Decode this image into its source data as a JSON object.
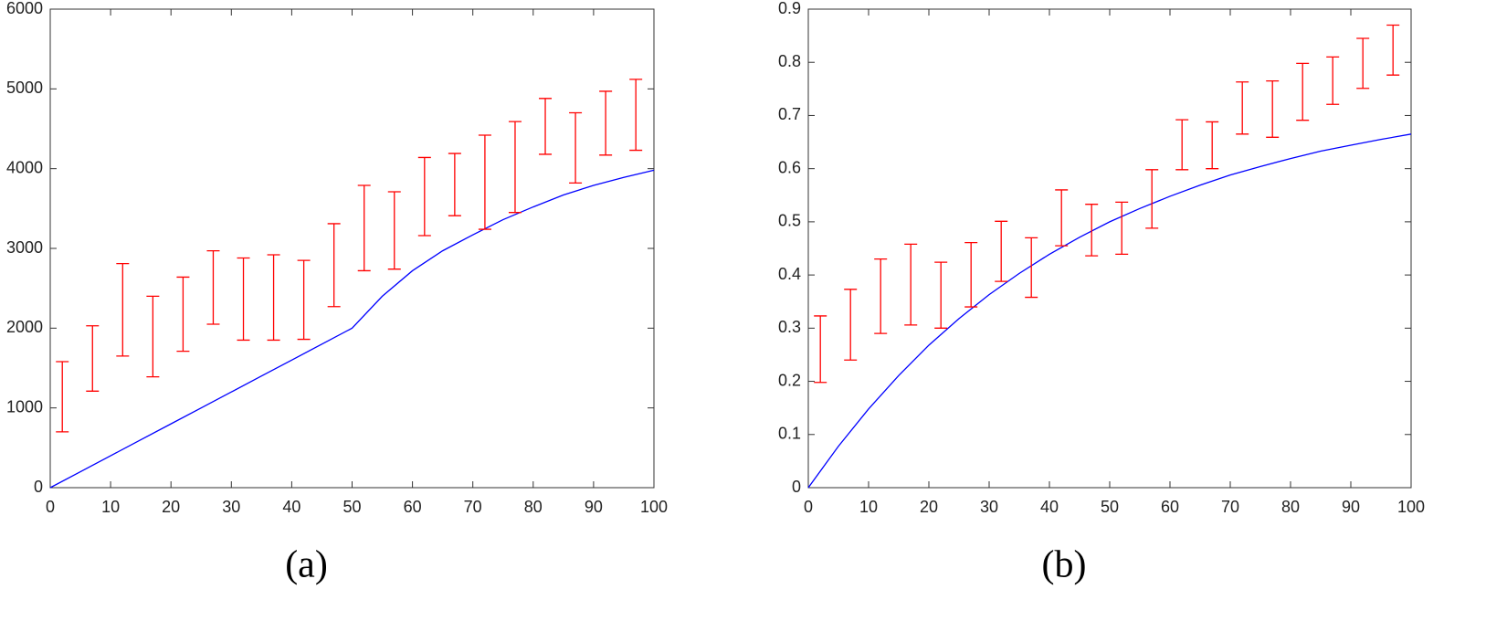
{
  "chart_data": [
    {
      "type": "errorbar",
      "caption": "(a)",
      "xlim": [
        0,
        100
      ],
      "xticks": [
        0,
        10,
        20,
        30,
        40,
        50,
        60,
        70,
        80,
        90,
        100
      ],
      "ylim": [
        0,
        6000
      ],
      "yticks": [
        0,
        1000,
        2000,
        3000,
        4000,
        5000,
        6000
      ],
      "line": {
        "color": "#0000ff",
        "x": [
          0,
          5,
          10,
          15,
          20,
          25,
          30,
          35,
          40,
          45,
          50,
          55,
          60,
          65,
          70,
          75,
          80,
          85,
          90,
          95,
          100
        ],
        "values": [
          0,
          200,
          400,
          600,
          800,
          1000,
          1200,
          1400,
          1600,
          1800,
          2000,
          2400,
          2720,
          2970,
          3170,
          3360,
          3520,
          3670,
          3790,
          3890,
          3980
        ]
      },
      "error_bars": {
        "color": "#ff0000",
        "x": [
          2,
          7,
          12,
          17,
          22,
          27,
          32,
          37,
          42,
          47,
          52,
          57,
          62,
          67,
          72,
          77,
          82,
          87,
          92,
          97
        ],
        "low": [
          700,
          1210,
          1650,
          1390,
          1710,
          2050,
          1850,
          1850,
          1860,
          2270,
          2720,
          2740,
          3160,
          3410,
          3240,
          3450,
          4180,
          3820,
          4170,
          4230
        ],
        "high": [
          1580,
          2030,
          2810,
          2400,
          2640,
          2970,
          2880,
          2920,
          2850,
          3310,
          3790,
          3710,
          4140,
          4190,
          4420,
          4590,
          4880,
          4700,
          4970,
          5120
        ]
      }
    },
    {
      "type": "errorbar",
      "caption": "(b)",
      "xlim": [
        0,
        100
      ],
      "xticks": [
        0,
        10,
        20,
        30,
        40,
        50,
        60,
        70,
        80,
        90,
        100
      ],
      "ylim": [
        0,
        0.9
      ],
      "yticks": [
        0,
        0.1,
        0.2,
        0.3,
        0.4,
        0.5,
        0.6,
        0.7,
        0.8,
        0.9
      ],
      "line": {
        "color": "#0000ff",
        "x": [
          0,
          5,
          10,
          15,
          20,
          25,
          30,
          35,
          40,
          45,
          50,
          55,
          60,
          65,
          70,
          75,
          80,
          85,
          90,
          95,
          100
        ],
        "values": [
          0,
          0.078,
          0.148,
          0.211,
          0.268,
          0.318,
          0.363,
          0.403,
          0.439,
          0.471,
          0.5,
          0.525,
          0.548,
          0.569,
          0.588,
          0.604,
          0.619,
          0.633,
          0.644,
          0.655,
          0.665
        ]
      },
      "error_bars": {
        "color": "#ff0000",
        "x": [
          2,
          7,
          12,
          17,
          22,
          27,
          32,
          37,
          42,
          47,
          52,
          57,
          62,
          67,
          72,
          77,
          82,
          87,
          92,
          97
        ],
        "low": [
          0.198,
          0.24,
          0.29,
          0.306,
          0.3,
          0.34,
          0.388,
          0.358,
          0.455,
          0.436,
          0.439,
          0.488,
          0.598,
          0.6,
          0.665,
          0.659,
          0.691,
          0.721,
          0.751,
          0.776
        ],
        "high": [
          0.323,
          0.373,
          0.43,
          0.458,
          0.424,
          0.461,
          0.501,
          0.47,
          0.56,
          0.533,
          0.537,
          0.598,
          0.692,
          0.688,
          0.763,
          0.765,
          0.798,
          0.81,
          0.845,
          0.87
        ]
      }
    }
  ]
}
